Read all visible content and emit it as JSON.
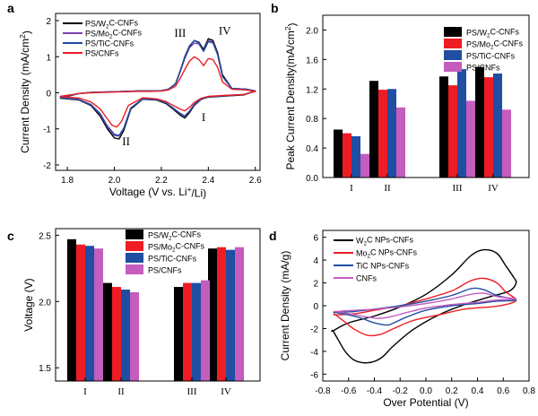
{
  "colors": {
    "black": "#000000",
    "red": "#ee1c24",
    "blue": "#1f4ea3",
    "magenta": "#c45dbd",
    "purple": "#7b3fb0"
  },
  "chart_data": [
    {
      "panel": "a",
      "type": "line",
      "xlabel": "Voltage (V vs. Li",
      "xlabel_sup": "+",
      "xlabel_tail": "/Li)",
      "ylabel": "Current Density (mA/cm",
      "ylabel_sup": "2",
      "ylabel_tail": ")",
      "xlim": [
        1.75,
        2.62
      ],
      "ylim": [
        -2.15,
        2.2
      ],
      "xticks": [
        1.8,
        2.0,
        2.2,
        2.4,
        2.6
      ],
      "xtick_labels": [
        "1.8",
        "2.0",
        "2.2",
        "2.4",
        "2.6"
      ],
      "yticks": [
        -2,
        -1,
        0,
        1,
        2
      ],
      "ytick_labels": [
        "-2",
        "-1",
        "0",
        "1",
        "2"
      ],
      "legend_placement": "top-left",
      "annotations": [
        {
          "text": "I",
          "x": 2.38,
          "y": -0.78
        },
        {
          "text": "II",
          "x": 2.05,
          "y": -1.45
        },
        {
          "text": "III",
          "x": 2.28,
          "y": 1.55
        },
        {
          "text": "IV",
          "x": 2.47,
          "y": 1.62
        }
      ],
      "series": [
        {
          "name": "PS/W",
          "sub": "2",
          "tail": "C-CNFs",
          "color": "#000000",
          "x": [
            1.77,
            1.85,
            1.9,
            1.94,
            1.97,
            2.0,
            2.02,
            2.04,
            2.07,
            2.12,
            2.18,
            2.22,
            2.25,
            2.28,
            2.3,
            2.32,
            2.34,
            2.37,
            2.4,
            2.45,
            2.5,
            2.55,
            2.6,
            2.56,
            2.5,
            2.46,
            2.44,
            2.42,
            2.4,
            2.38,
            2.36,
            2.34,
            2.32,
            2.3,
            2.28,
            2.26,
            2.23,
            2.2,
            2.15,
            2.1,
            2.05,
            2.0,
            1.95,
            1.9,
            1.85,
            1.77
          ],
          "y": [
            -0.15,
            -0.2,
            -0.35,
            -0.65,
            -1.0,
            -1.25,
            -1.28,
            -1.05,
            -0.45,
            -0.18,
            -0.2,
            -0.3,
            -0.45,
            -0.62,
            -0.7,
            -0.55,
            -0.35,
            -0.18,
            -0.12,
            -0.1,
            -0.08,
            -0.06,
            0.05,
            0.1,
            0.12,
            0.5,
            1.1,
            1.45,
            1.5,
            1.2,
            1.4,
            1.45,
            1.3,
            1.0,
            0.6,
            0.25,
            0.1,
            0.06,
            0.05,
            0.05,
            0.04,
            0.03,
            0.02,
            0.01,
            -0.02,
            -0.15
          ]
        },
        {
          "name": "PS/Mo",
          "sub": "2",
          "tail": "C-CNFs",
          "color": "#7b3fb0",
          "x": [
            1.77,
            1.85,
            1.9,
            1.94,
            1.97,
            2.0,
            2.02,
            2.04,
            2.07,
            2.12,
            2.18,
            2.22,
            2.25,
            2.28,
            2.3,
            2.32,
            2.34,
            2.37,
            2.4,
            2.45,
            2.5,
            2.55,
            2.6,
            2.56,
            2.5,
            2.46,
            2.44,
            2.42,
            2.4,
            2.38,
            2.36,
            2.34,
            2.32,
            2.3,
            2.28,
            2.26,
            2.23,
            2.2,
            2.15,
            2.1,
            2.05,
            2.0,
            1.95,
            1.9,
            1.85,
            1.77
          ],
          "y": [
            -0.14,
            -0.19,
            -0.33,
            -0.6,
            -0.95,
            -1.18,
            -1.2,
            -1.0,
            -0.42,
            -0.17,
            -0.19,
            -0.28,
            -0.42,
            -0.58,
            -0.65,
            -0.52,
            -0.33,
            -0.17,
            -0.11,
            -0.09,
            -0.07,
            -0.05,
            0.05,
            0.1,
            0.12,
            0.45,
            1.05,
            1.4,
            1.45,
            1.15,
            1.35,
            1.38,
            1.25,
            0.95,
            0.58,
            0.24,
            0.1,
            0.06,
            0.05,
            0.05,
            0.04,
            0.03,
            0.02,
            0.01,
            -0.02,
            -0.14
          ]
        },
        {
          "name": "PS/TiC-CNFs",
          "sub": "",
          "tail": "",
          "color": "#1f4ea3",
          "x": [
            1.77,
            1.85,
            1.9,
            1.94,
            1.97,
            2.0,
            2.02,
            2.04,
            2.07,
            2.12,
            2.18,
            2.22,
            2.25,
            2.28,
            2.3,
            2.32,
            2.34,
            2.37,
            2.4,
            2.45,
            2.5,
            2.55,
            2.6,
            2.56,
            2.5,
            2.46,
            2.44,
            2.42,
            2.4,
            2.38,
            2.36,
            2.34,
            2.32,
            2.3,
            2.28,
            2.26,
            2.23,
            2.2,
            2.15,
            2.1,
            2.05,
            2.0,
            1.95,
            1.9,
            1.85,
            1.77
          ],
          "y": [
            -0.14,
            -0.19,
            -0.32,
            -0.58,
            -0.92,
            -1.15,
            -1.18,
            -0.98,
            -0.42,
            -0.17,
            -0.19,
            -0.28,
            -0.42,
            -0.57,
            -0.64,
            -0.5,
            -0.32,
            -0.17,
            -0.11,
            -0.09,
            -0.07,
            -0.05,
            0.05,
            0.1,
            0.12,
            0.45,
            1.05,
            1.38,
            1.42,
            1.15,
            1.38,
            1.45,
            1.28,
            0.98,
            0.58,
            0.24,
            0.1,
            0.06,
            0.05,
            0.05,
            0.04,
            0.03,
            0.02,
            0.01,
            -0.02,
            -0.14
          ]
        },
        {
          "name": "PS/CNFs",
          "sub": "",
          "tail": "",
          "color": "#ee1c24",
          "x": [
            1.77,
            1.85,
            1.9,
            1.94,
            1.97,
            1.99,
            2.01,
            2.03,
            2.06,
            2.12,
            2.18,
            2.22,
            2.25,
            2.28,
            2.3,
            2.32,
            2.34,
            2.37,
            2.4,
            2.45,
            2.5,
            2.55,
            2.6,
            2.56,
            2.5,
            2.46,
            2.44,
            2.42,
            2.4,
            2.38,
            2.36,
            2.34,
            2.32,
            2.3,
            2.28,
            2.26,
            2.23,
            2.2,
            2.15,
            2.1,
            2.05,
            2.0,
            1.95,
            1.9,
            1.85,
            1.77
          ],
          "y": [
            -0.1,
            -0.15,
            -0.25,
            -0.45,
            -0.72,
            -0.9,
            -0.95,
            -0.8,
            -0.35,
            -0.14,
            -0.17,
            -0.24,
            -0.35,
            -0.45,
            -0.5,
            -0.4,
            -0.27,
            -0.15,
            -0.1,
            -0.08,
            -0.06,
            -0.05,
            0.04,
            0.08,
            0.1,
            0.3,
            0.7,
            0.92,
            0.95,
            0.75,
            0.92,
            1.0,
            0.88,
            0.65,
            0.4,
            0.18,
            0.08,
            0.05,
            0.04,
            0.04,
            0.03,
            0.02,
            0.01,
            0.0,
            -0.02,
            -0.1
          ]
        }
      ]
    },
    {
      "panel": "b",
      "type": "bar",
      "ylabel": "Peak Current Density(mA/cm",
      "ylabel_sup": "2",
      "ylabel_tail": ")",
      "categories": [
        "I",
        "II",
        "III",
        "IV"
      ],
      "ylim": [
        0,
        2.2
      ],
      "yticks": [
        0.0,
        0.4,
        0.8,
        1.2,
        1.6,
        2.0
      ],
      "ytick_labels": [
        "0.0",
        "0.4",
        "0.8",
        "1.2",
        "1.6",
        "2.0"
      ],
      "legend_placement": "top-right",
      "series": [
        {
          "name": "PS/W",
          "sub": "2",
          "tail": "C-CNFs",
          "color": "#000000",
          "values": [
            0.65,
            1.31,
            1.37,
            1.5
          ]
        },
        {
          "name": "PS/Mo",
          "sub": "2",
          "tail": "C-CNFs",
          "color": "#ee1c24",
          "values": [
            0.6,
            1.19,
            1.25,
            1.36
          ]
        },
        {
          "name": "PS/TiC-CNFs",
          "sub": "",
          "tail": "",
          "color": "#1f4ea3",
          "values": [
            0.56,
            1.2,
            1.47,
            1.41
          ]
        },
        {
          "name": "PS/CNFs",
          "sub": "",
          "tail": "",
          "color": "#c45dbd",
          "values": [
            0.32,
            0.95,
            1.04,
            0.92
          ]
        }
      ]
    },
    {
      "panel": "c",
      "type": "bar",
      "ylabel": "Voltage (V)",
      "categories": [
        "I",
        "II",
        "III",
        "IV"
      ],
      "ylim": [
        1.4,
        2.55
      ],
      "yticks": [
        1.5,
        2.0,
        2.5
      ],
      "ytick_labels": [
        "1.5",
        "2.0",
        "2.5"
      ],
      "legend_placement": "top-left",
      "series": [
        {
          "name": "PS/W",
          "sub": "2",
          "tail": "C-CNFs",
          "color": "#000000",
          "values": [
            2.47,
            2.14,
            2.11,
            2.4
          ]
        },
        {
          "name": "PS/Mo",
          "sub": "2",
          "tail": "C-CNFs",
          "color": "#ee1c24",
          "values": [
            2.43,
            2.11,
            2.14,
            2.41
          ]
        },
        {
          "name": "PS/TiC-CNFs",
          "sub": "",
          "tail": "",
          "color": "#1f4ea3",
          "values": [
            2.42,
            2.09,
            2.14,
            2.39
          ]
        },
        {
          "name": "PS/CNFs",
          "sub": "",
          "tail": "",
          "color": "#c45dbd",
          "values": [
            2.4,
            2.07,
            2.16,
            2.41
          ]
        }
      ]
    },
    {
      "panel": "d",
      "type": "line",
      "xlabel": "Over Potential (V)",
      "ylabel": "Current Density (mA/g)",
      "xlim": [
        -0.8,
        0.8
      ],
      "ylim": [
        -6.6,
        6.6
      ],
      "xticks": [
        -0.8,
        -0.6,
        -0.4,
        -0.2,
        0.0,
        0.2,
        0.4,
        0.6,
        0.8
      ],
      "xtick_labels": [
        "-0.8",
        "-0.6",
        "-0.4",
        "-0.2",
        "0.0",
        "0.2",
        "0.4",
        "0.6",
        "0.8"
      ],
      "yticks": [
        -6,
        -4,
        -2,
        0,
        2,
        4,
        6
      ],
      "ytick_labels": [
        "-6",
        "-4",
        "-2",
        "0",
        "2",
        "4",
        "6"
      ],
      "legend_placement": "top-left",
      "series": [
        {
          "name": "W",
          "sub": "2",
          "tail": "C NPs-CNFs",
          "color": "#000000",
          "x": [
            -0.72,
            -0.6,
            -0.4,
            -0.2,
            0.0,
            0.2,
            0.35,
            0.45,
            0.55,
            0.62,
            0.68,
            0.7,
            0.65,
            0.5,
            0.3,
            0.1,
            -0.1,
            -0.25,
            -0.35,
            -0.45,
            -0.55,
            -0.62,
            -0.68,
            -0.72
          ],
          "y": [
            -2.2,
            -1.5,
            -0.9,
            -0.1,
            1.0,
            2.7,
            4.4,
            4.9,
            4.6,
            3.5,
            2.5,
            2.0,
            1.3,
            0.8,
            0.1,
            -0.8,
            -2.1,
            -3.5,
            -4.6,
            -5.0,
            -4.8,
            -4.1,
            -3.0,
            -2.2
          ]
        },
        {
          "name": "Mo",
          "sub": "2",
          "tail": "C NPs-CNFs",
          "color": "#ee1c24",
          "x": [
            -0.7,
            -0.55,
            -0.4,
            -0.2,
            0.0,
            0.2,
            0.35,
            0.45,
            0.55,
            0.62,
            0.7,
            0.62,
            0.5,
            0.3,
            0.1,
            -0.1,
            -0.25,
            -0.35,
            -0.45,
            -0.55,
            -0.62,
            -0.7
          ],
          "y": [
            -0.8,
            -0.7,
            -0.4,
            0.0,
            0.6,
            1.3,
            2.2,
            2.4,
            2.0,
            1.2,
            0.5,
            0.1,
            -0.1,
            -0.3,
            -0.8,
            -1.3,
            -2.0,
            -2.5,
            -2.6,
            -2.1,
            -1.5,
            -0.8
          ]
        },
        {
          "name": "TiC NPs-CNFs",
          "sub": "",
          "tail": "",
          "color": "#1f4ea3",
          "x": [
            -0.7,
            -0.55,
            -0.4,
            -0.2,
            0.0,
            0.2,
            0.35,
            0.45,
            0.55,
            0.7,
            0.55,
            0.4,
            0.2,
            0.0,
            -0.15,
            -0.25,
            -0.3,
            -0.4,
            -0.5,
            -0.6,
            -0.7
          ],
          "y": [
            -0.6,
            -0.5,
            -0.3,
            0.0,
            0.4,
            0.9,
            1.5,
            1.4,
            0.9,
            0.5,
            0.4,
            0.2,
            0.0,
            -0.4,
            -1.0,
            -1.5,
            -1.7,
            -1.5,
            -1.1,
            -0.8,
            -0.6
          ]
        },
        {
          "name": "CNFs",
          "sub": "",
          "tail": "",
          "color": "#c45dbd",
          "x": [
            -0.7,
            -0.55,
            -0.4,
            -0.2,
            0.0,
            0.2,
            0.35,
            0.45,
            0.55,
            0.7,
            0.55,
            0.4,
            0.2,
            0.0,
            -0.15,
            -0.25,
            -0.35,
            -0.45,
            -0.55,
            -0.65,
            -0.7
          ],
          "y": [
            -0.5,
            -0.4,
            -0.3,
            -0.1,
            0.2,
            0.6,
            1.0,
            1.1,
            0.8,
            0.6,
            0.5,
            0.3,
            0.1,
            -0.2,
            -0.6,
            -0.9,
            -1.1,
            -1.0,
            -0.8,
            -0.6,
            -0.5
          ]
        }
      ]
    }
  ],
  "panel_labels": [
    "a",
    "b",
    "c",
    "d"
  ]
}
